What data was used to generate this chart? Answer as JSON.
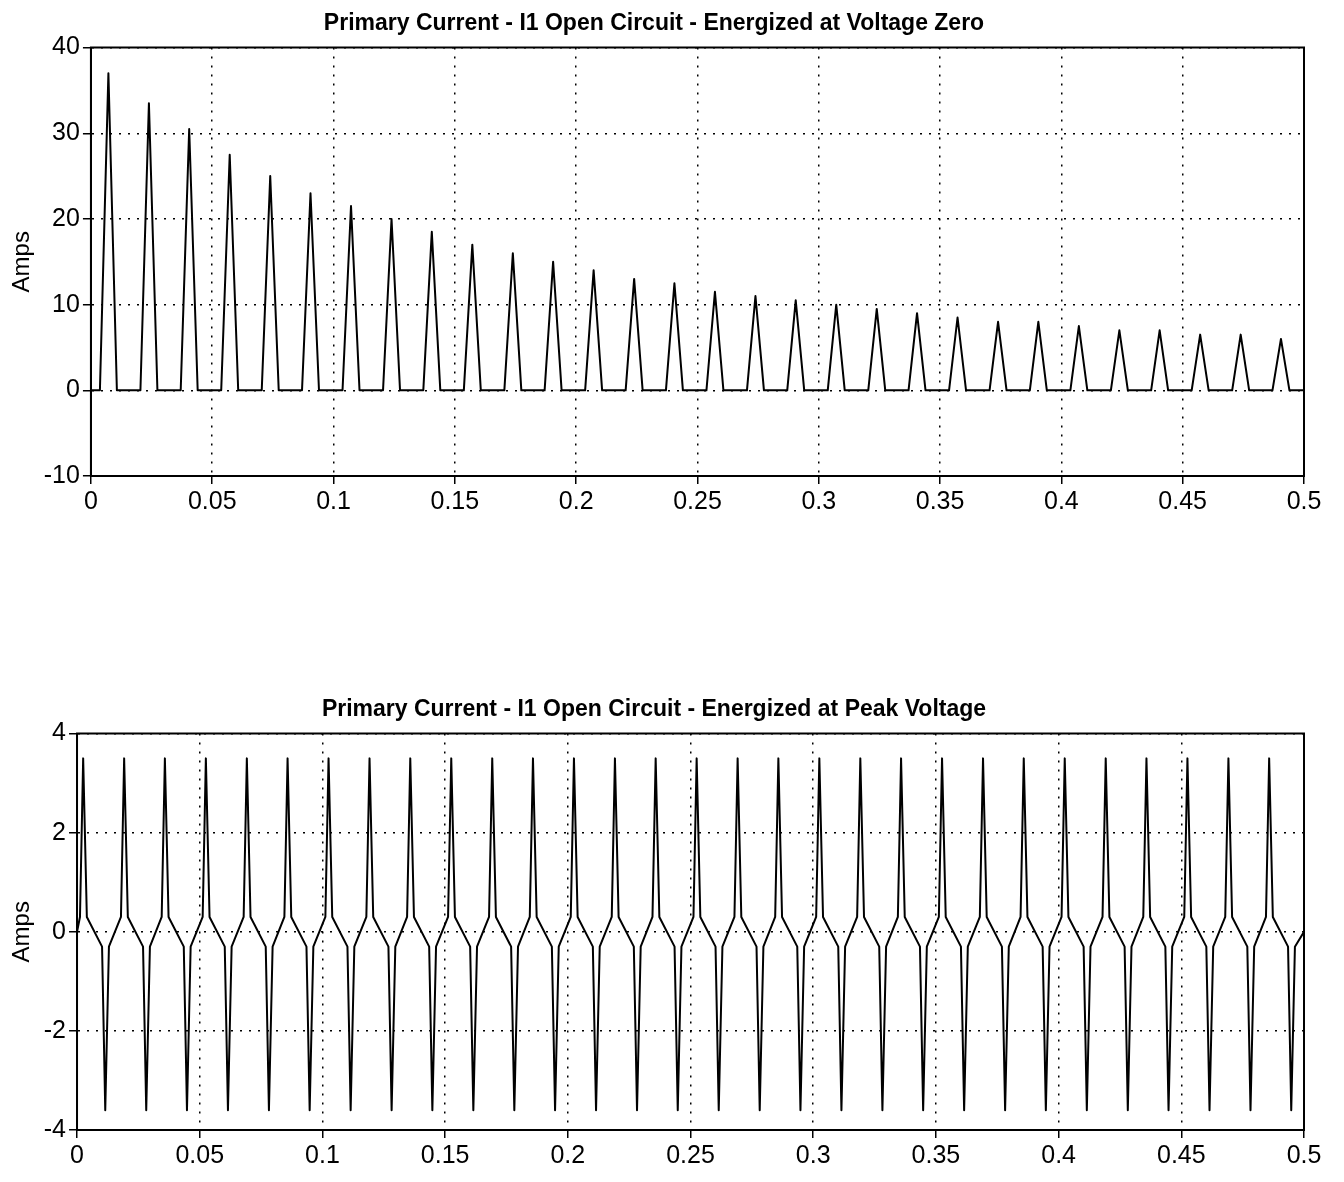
{
  "chart_data": [
    {
      "type": "line",
      "title": "Primary Current - I1 Open Circuit - Energized at Voltage Zero",
      "ylabel": "Amps",
      "color": "#000000",
      "grid": true,
      "xlim": [
        0,
        0.5
      ],
      "xticks": [
        0,
        0.05,
        0.1,
        0.15,
        0.2,
        0.25,
        0.3,
        0.35,
        0.4,
        0.45,
        0.5
      ],
      "ylim": [
        -10,
        40
      ],
      "yticks": [
        -10,
        0,
        10,
        20,
        30,
        40
      ],
      "x": [
        0,
        0.0037,
        0.0072,
        0.0107,
        0.0204,
        0.0239,
        0.0274,
        0.037,
        0.0405,
        0.044,
        0.0537,
        0.0572,
        0.0607,
        0.0704,
        0.0739,
        0.0774,
        0.087,
        0.0905,
        0.094,
        0.1037,
        0.1072,
        0.1107,
        0.1204,
        0.1239,
        0.1274,
        0.137,
        0.1405,
        0.144,
        0.1537,
        0.1572,
        0.1607,
        0.1704,
        0.1739,
        0.1774,
        0.187,
        0.1905,
        0.194,
        0.2037,
        0.2072,
        0.2107,
        0.2204,
        0.2239,
        0.2274,
        0.237,
        0.2405,
        0.244,
        0.2537,
        0.2572,
        0.2607,
        0.2704,
        0.2739,
        0.2774,
        0.287,
        0.2905,
        0.294,
        0.3037,
        0.3072,
        0.3107,
        0.3204,
        0.3239,
        0.3274,
        0.337,
        0.3405,
        0.344,
        0.3537,
        0.3572,
        0.3607,
        0.3704,
        0.3739,
        0.3774,
        0.387,
        0.3905,
        0.394,
        0.4037,
        0.4072,
        0.4107,
        0.4204,
        0.4239,
        0.4274,
        0.437,
        0.4405,
        0.444,
        0.4537,
        0.4572,
        0.4607,
        0.4704,
        0.4739,
        0.4774,
        0.487,
        0.4905,
        0.494,
        0.5
      ],
      "values": [
        0,
        0,
        37,
        0,
        0,
        33.5,
        0,
        0,
        30.5,
        0,
        0,
        27.5,
        0,
        0,
        25,
        0,
        0,
        23,
        0,
        0,
        21.5,
        0,
        0,
        20,
        0,
        0,
        18.5,
        0,
        0,
        17,
        0,
        0,
        16,
        0,
        0,
        15,
        0,
        0,
        14,
        0,
        0,
        13,
        0,
        0,
        12.5,
        0,
        0,
        11.5,
        0,
        0,
        11,
        0,
        0,
        10.5,
        0,
        0,
        10,
        0,
        0,
        9.5,
        0,
        0,
        9,
        0,
        0,
        8.5,
        0,
        0,
        8,
        0,
        0,
        8,
        0,
        0,
        7.5,
        0,
        0,
        7,
        0,
        0,
        7,
        0,
        0,
        6.5,
        0,
        0,
        6.5,
        0,
        0,
        6,
        0,
        0
      ]
    },
    {
      "type": "line",
      "title": "Primary Current - I1 Open Circuit - Energized at Peak Voltage",
      "ylabel": "Amps",
      "color": "#000000",
      "grid": true,
      "xlim": [
        0,
        0.5
      ],
      "xticks": [
        0,
        0.05,
        0.1,
        0.15,
        0.2,
        0.25,
        0.3,
        0.35,
        0.4,
        0.45,
        0.5
      ],
      "ylim": [
        -4,
        4
      ],
      "yticks": [
        -4,
        -2,
        0,
        2,
        4
      ],
      "x": [
        0,
        0.0012,
        0.0025,
        0.004,
        0.0102,
        0.0115,
        0.013,
        0.0179,
        0.0192,
        0.0207,
        0.0269,
        0.0282,
        0.0297,
        0.0345,
        0.0358,
        0.0373,
        0.0435,
        0.0448,
        0.0463,
        0.0512,
        0.0525,
        0.054,
        0.0602,
        0.0615,
        0.063,
        0.0679,
        0.0692,
        0.0707,
        0.0769,
        0.0782,
        0.0797,
        0.0845,
        0.0858,
        0.0873,
        0.0935,
        0.0948,
        0.0963,
        0.1012,
        0.1025,
        0.104,
        0.1102,
        0.1115,
        0.113,
        0.1179,
        0.1192,
        0.1207,
        0.1269,
        0.1282,
        0.1297,
        0.1345,
        0.1358,
        0.1373,
        0.1435,
        0.1448,
        0.1463,
        0.1512,
        0.1525,
        0.154,
        0.1602,
        0.1615,
        0.163,
        0.1679,
        0.1692,
        0.1707,
        0.1769,
        0.1782,
        0.1797,
        0.1845,
        0.1858,
        0.1873,
        0.1935,
        0.1948,
        0.1963,
        0.2012,
        0.2025,
        0.204,
        0.2102,
        0.2115,
        0.213,
        0.2179,
        0.2192,
        0.2207,
        0.2269,
        0.2282,
        0.2297,
        0.2345,
        0.2358,
        0.2373,
        0.2435,
        0.2448,
        0.2463,
        0.2512,
        0.2525,
        0.254,
        0.2602,
        0.2615,
        0.263,
        0.2679,
        0.2692,
        0.2707,
        0.2769,
        0.2782,
        0.2797,
        0.2845,
        0.2858,
        0.2873,
        0.2935,
        0.2948,
        0.2963,
        0.3012,
        0.3025,
        0.304,
        0.3102,
        0.3115,
        0.313,
        0.3179,
        0.3192,
        0.3207,
        0.3269,
        0.3282,
        0.3297,
        0.3345,
        0.3358,
        0.3373,
        0.3435,
        0.3448,
        0.3463,
        0.3512,
        0.3525,
        0.354,
        0.3602,
        0.3615,
        0.363,
        0.3679,
        0.3692,
        0.3707,
        0.3769,
        0.3782,
        0.3797,
        0.3845,
        0.3858,
        0.3873,
        0.3935,
        0.3948,
        0.3963,
        0.4012,
        0.4025,
        0.404,
        0.4102,
        0.4115,
        0.413,
        0.4179,
        0.4192,
        0.4207,
        0.4269,
        0.4282,
        0.4297,
        0.4345,
        0.4358,
        0.4373,
        0.4435,
        0.4448,
        0.4463,
        0.4512,
        0.4525,
        0.454,
        0.4602,
        0.4615,
        0.463,
        0.4679,
        0.4692,
        0.4707,
        0.4769,
        0.4782,
        0.4797,
        0.4845,
        0.4858,
        0.4873,
        0.4935,
        0.4948,
        0.4963,
        0.5
      ],
      "values": [
        0,
        0.3,
        3.5,
        0.3,
        -0.3,
        -3.6,
        -0.3,
        0.3,
        3.5,
        0.3,
        -0.3,
        -3.6,
        -0.3,
        0.3,
        3.5,
        0.3,
        -0.3,
        -3.6,
        -0.3,
        0.3,
        3.5,
        0.3,
        -0.3,
        -3.6,
        -0.3,
        0.3,
        3.5,
        0.3,
        -0.3,
        -3.6,
        -0.3,
        0.3,
        3.5,
        0.3,
        -0.3,
        -3.6,
        -0.3,
        0.3,
        3.5,
        0.3,
        -0.3,
        -3.6,
        -0.3,
        0.3,
        3.5,
        0.3,
        -0.3,
        -3.6,
        -0.3,
        0.3,
        3.5,
        0.3,
        -0.3,
        -3.6,
        -0.3,
        0.3,
        3.5,
        0.3,
        -0.3,
        -3.6,
        -0.3,
        0.3,
        3.5,
        0.3,
        -0.3,
        -3.6,
        -0.3,
        0.3,
        3.5,
        0.3,
        -0.3,
        -3.6,
        -0.3,
        0.3,
        3.5,
        0.3,
        -0.3,
        -3.6,
        -0.3,
        0.3,
        3.5,
        0.3,
        -0.3,
        -3.6,
        -0.3,
        0.3,
        3.5,
        0.3,
        -0.3,
        -3.6,
        -0.3,
        0.3,
        3.5,
        0.3,
        -0.3,
        -3.6,
        -0.3,
        0.3,
        3.5,
        0.3,
        -0.3,
        -3.6,
        -0.3,
        0.3,
        3.5,
        0.3,
        -0.3,
        -3.6,
        -0.3,
        0.3,
        3.5,
        0.3,
        -0.3,
        -3.6,
        -0.3,
        0.3,
        3.5,
        0.3,
        -0.3,
        -3.6,
        -0.3,
        0.3,
        3.5,
        0.3,
        -0.3,
        -3.6,
        -0.3,
        0.3,
        3.5,
        0.3,
        -0.3,
        -3.6,
        -0.3,
        0.3,
        3.5,
        0.3,
        -0.3,
        -3.6,
        -0.3,
        0.3,
        3.5,
        0.3,
        -0.3,
        -3.6,
        -0.3,
        0.3,
        3.5,
        0.3,
        -0.3,
        -3.6,
        -0.3,
        0.3,
        3.5,
        0.3,
        -0.3,
        -3.6,
        -0.3,
        0.3,
        3.5,
        0.3,
        -0.3,
        -3.6,
        -0.3,
        0.3,
        3.5,
        0.3,
        -0.3,
        -3.6,
        -0.3,
        0.3,
        3.5,
        0.3,
        -0.3,
        -3.6,
        -0.3,
        0.3,
        3.5,
        0.3,
        -0.3,
        -3.6,
        -0.3,
        0
      ]
    }
  ]
}
